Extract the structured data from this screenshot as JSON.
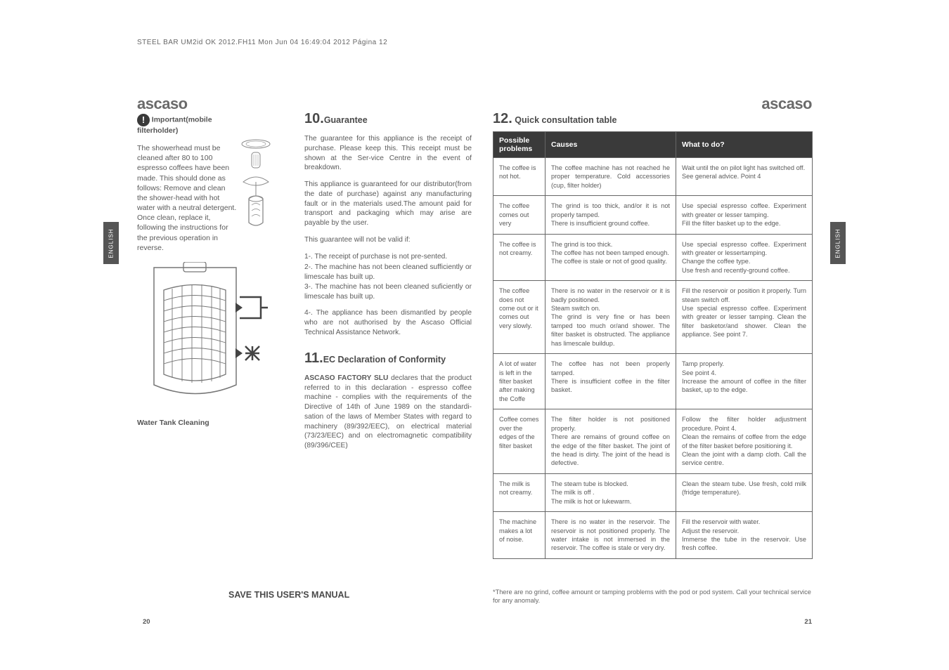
{
  "header": "STEEL BAR UM2id OK 2012.FH11   Mon Jun 04 16:49:04 2012      Página 12",
  "brand": "ascaso",
  "important": {
    "icon": "!",
    "label": "Important(mobile filterholder)"
  },
  "shower_text": "The showerhead must be cleaned after 80 to 100 espresso coffees have been made. This should done as follows: Remove and clean the shower-head with hot water with a neutral detergent. Once clean, replace it, following the instructions for the previous operation in reverse.",
  "tank_caption": "Water Tank Cleaning",
  "english_tab": "ENGLISH",
  "sec10": {
    "num": "10.",
    "title": "Guarantee",
    "p1": "The guarantee for this appliance is the receipt of purchase. Please keep this. This receipt must be shown at the Ser-vice Centre in the event of breakdown.",
    "p2": "This appliance is guaranteed for our distributor(from the date of purchase) against any manufacturing fault or in the materials used.The amount paid for transport and packaging which may arise are payable by the user.",
    "p3": "This guarantee will not be valid if:",
    "p4": "1-. The receipt of purchase is not pre-sented.",
    "p5": "2-. The machine has not been cleaned sufficiently or limescale has built up.",
    "p6": "3-. The machine has not been cleaned suficiently or limescale has built up.",
    "p7": "4-. The appliance has been dismantled by people who are not authorised by the Ascaso Official Technical Assistance Network."
  },
  "sec11": {
    "num": "11.",
    "title": "EC Declaration of Conformity",
    "p1a": "ASCASO FACTORY SLU",
    "p1b": " declares that the product referred to in this declaration - espresso coffee machine - complies with the requirements of the Directive of 14th  of June 1989 on the standardi-sation of the laws of Member States with regard to machinery (89/392/EEC), on electrical material (73/23/EEC) and on electromagnetic compatibility (89/396/CEE)"
  },
  "save_manual": "SAVE THIS USER'S MANUAL",
  "page_left": "20",
  "page_right": "21",
  "sec12": {
    "num": "12.",
    "title": " Quick consultation table",
    "head": {
      "c1": "Possible problems",
      "c2": "Causes",
      "c3": "What to do?"
    },
    "rows": [
      {
        "c1": "The coffee is not hot.",
        "c2": "The coffee machine has not reached he proper temperature. Cold accessories (cup, filter holder)",
        "c3": "Wait until the on pilot light has switched off.\nSee general advice. Point 4"
      },
      {
        "c1": "The coffee comes out very",
        "c2": "The grind is too thick, and/or it is not properly tamped.\nThere is insufficient ground coffee.",
        "c3": "Use special espresso coffee. Experiment with greater or lesser tamping.\nFill the filter basket up to the edge."
      },
      {
        "c1": "The coffee is not creamy.",
        "c2": "The grind is too thick.\nThe coffee has not been tamped enough.\nThe coffee is stale or not of good quality.",
        "c3": "Use special espresso coffee. Experiment with greater or lessertamping.\nChange the coffee type.\nUse fresh and recently-ground coffee."
      },
      {
        "c1": "The coffee does not come out or it comes out very slowly.",
        "c2": "There is no water in the reservoir or it is badly positioned.\nSteam switch on.\nThe grind is very fine or has been tamped too much or/and shower. The filter basket is obstructed. The appliance has limescale buildup.",
        "c3": "Fill the reservoir or position it properly. Turn steam switch off.\nUse special espresso coffee. Experiment with greater or lesser tamping. Clean the filter basketor/and shower. Clean the appliance. See point 7."
      },
      {
        "c1": "A lot of water is left in the filter basket after making the Coffe",
        "c2": "The coffee has not been properly tamped.\nThere is insufficient coffee in the filter basket.",
        "c3": "Tamp properly.\nSee point 4.\nIncrease the amount of coffee in the filter basket, up to the edge."
      },
      {
        "c1": "Coffee comes over the edges of the filter basket",
        "c2": "The filter holder is not positioned properly.\nThere are remains of ground coffee on the edge of the filter basket. The joint of the head is dirty. The joint of the head is defective.",
        "c3": "Follow the filter holder adjustment procedure. Point 4.\nClean the remains of coffee from the edge of the filter basket before positioning it.\nClean the joint with a damp cloth. Call the service centre."
      },
      {
        "c1": "The milk is not creamy.",
        "c2": "The steam tube is blocked.\nThe milk is off .\nThe milk is hot or lukewarm.",
        "c3": "Clean the steam tube. Use fresh, cold milk (fridge temperature)."
      },
      {
        "c1": "The machine makes a lot of noise.",
        "c2": "There is no water in the reservoir. The reservoir is not positioned properly. The water intake is not immersed in the reservoir. The coffee is stale or very dry.",
        "c3": "Fill the reservoir with water.\nAdjust the reservoir.\nImmerse the tube in the reservoir. Use fresh coffee."
      }
    ]
  },
  "footnote": "*There are no grind, coffee amount or tamping problems with the pod or pod system. Call your technical service for any anomaly.",
  "colors": {
    "dark": "#3a3a3a",
    "text": "#5a5a5a",
    "border": "#666"
  }
}
